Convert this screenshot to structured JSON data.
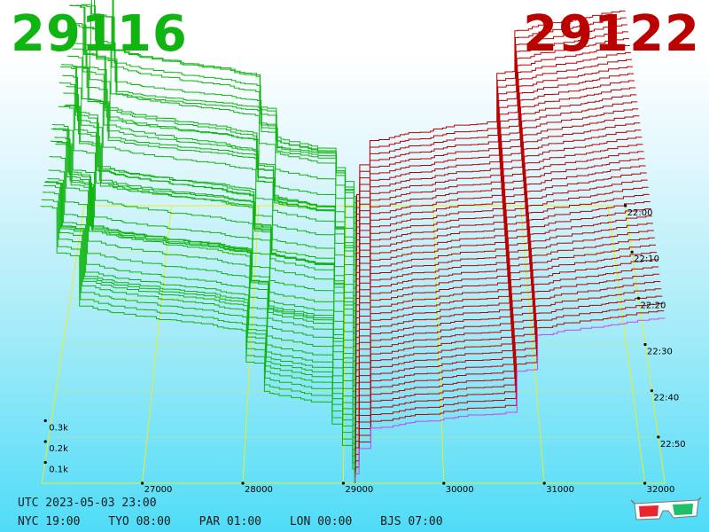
{
  "header": {
    "bid_price": "29116",
    "ask_price": "29122",
    "bid_color": "#11b511",
    "ask_color": "#bb0000"
  },
  "footer": {
    "utc": "UTC 2023-05-03 23:00",
    "timezones": [
      {
        "label": "NYC 19:00"
      },
      {
        "label": "TYO 08:00"
      },
      {
        "label": "PAR 01:00"
      },
      {
        "label": "LON 00:00"
      },
      {
        "label": "BJS 07:00"
      }
    ]
  },
  "icons": {
    "glasses": "3d-glasses-icon"
  },
  "chart_data": {
    "type": "area",
    "x_ticks": [
      "27000",
      "28000",
      "29000",
      "30000",
      "31000",
      "32000"
    ],
    "x_values": [
      27000,
      28000,
      29000,
      30000,
      31000,
      32000
    ],
    "xlim": [
      26000,
      32200
    ],
    "volume_ticks": [
      {
        "label": "0.1k",
        "value": 100
      },
      {
        "label": "0.2k",
        "value": 200
      },
      {
        "label": "0.3k",
        "value": 300
      }
    ],
    "time_ticks": [
      "22:00",
      "22:10",
      "22:20",
      "22:30",
      "22:40",
      "22:50"
    ],
    "mid_price": 29116,
    "colors": {
      "bids": "#11b511",
      "asks": "#bb0000",
      "latest": "#cc44ee",
      "grid": "#e6ee2a"
    }
  }
}
